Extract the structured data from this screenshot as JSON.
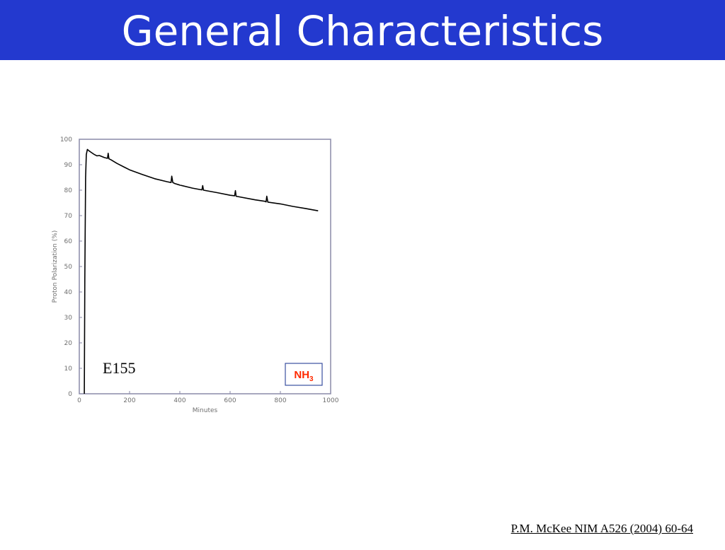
{
  "slide": {
    "title": "General Characteristics",
    "citation": "P.M. McKee NIM A526 (2004) 60-64"
  },
  "colors": {
    "title_bar": "#2339cf",
    "title_text": "#ffffff",
    "legend_text": "#ff2a00",
    "legend_border": "#3a4fa0",
    "axes": "#8a8aa8",
    "curve": "#000000"
  },
  "chart_data": {
    "type": "line",
    "xlabel": "Minutes",
    "ylabel": "Proton Polarization (%)",
    "xlim": [
      0,
      1000
    ],
    "ylim": [
      0,
      100
    ],
    "xticks": [
      0,
      200,
      400,
      600,
      800,
      1000
    ],
    "yticks": [
      0,
      10,
      20,
      30,
      40,
      50,
      60,
      70,
      80,
      90,
      100
    ],
    "annotation": "E155",
    "legend": {
      "base": "NH",
      "subscript": "3"
    },
    "series": [
      {
        "x": [
          20,
          22,
          25,
          28,
          32,
          38,
          45,
          60,
          70,
          80,
          100,
          112,
          115,
          118,
          125,
          150,
          180,
          200,
          250,
          300,
          350,
          365,
          368,
          372,
          380,
          400,
          450,
          488,
          491,
          494,
          500,
          550,
          600,
          618,
          621,
          624,
          630,
          700,
          740,
          743,
          746,
          750,
          800,
          850,
          900,
          950
        ],
        "y": [
          0,
          45,
          85,
          94,
          96,
          95.5,
          95,
          94,
          93.5,
          93.6,
          92.8,
          92.5,
          94.5,
          92.3,
          92,
          90.5,
          89,
          88,
          86.2,
          84.5,
          83.3,
          83,
          85.5,
          83,
          82.6,
          82,
          80.8,
          80.1,
          81.8,
          80,
          79.9,
          79,
          78,
          77.8,
          79.8,
          77.6,
          77.5,
          76.2,
          75.6,
          75.4,
          77.6,
          75.3,
          74.6,
          73.6,
          72.8,
          71.9
        ]
      }
    ]
  }
}
